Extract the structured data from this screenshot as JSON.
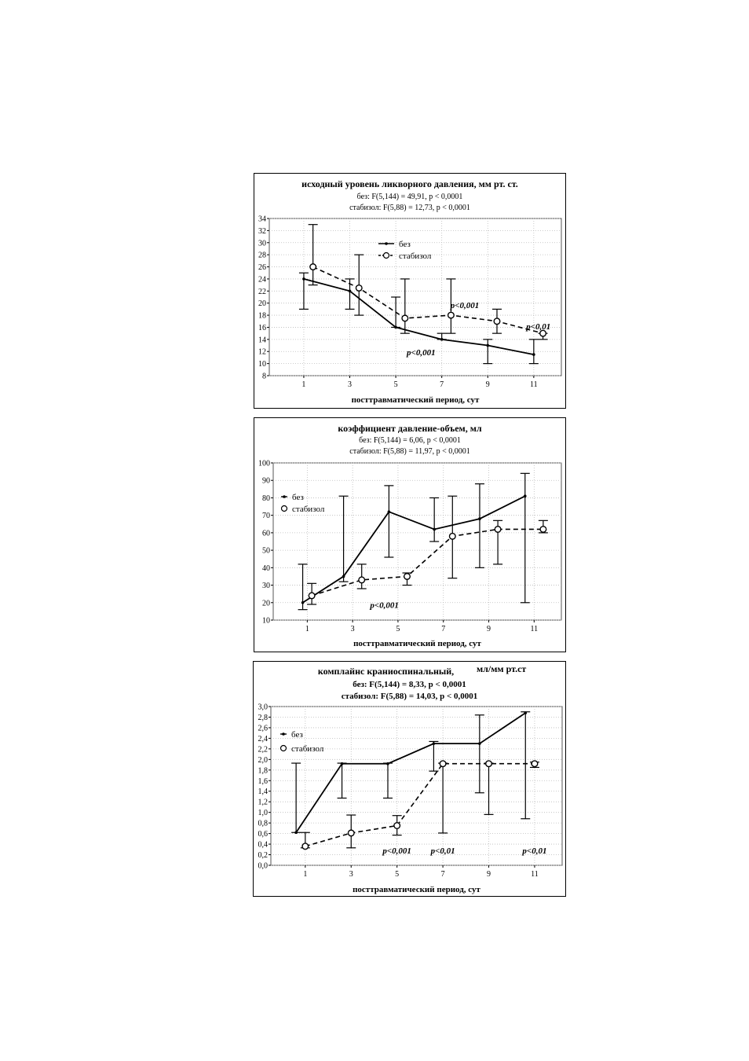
{
  "chart_data": [
    {
      "type": "line",
      "title": "исходный уровень ликворного давления, мм рт. ст.",
      "stats": [
        "без:   F(5,144) = 49,91, p < 0,0001",
        "стабизол:   F(5,88) = 12,73, p < 0,0001"
      ],
      "xlabel": "посттравматический период, сут",
      "ylabel": "",
      "x_ticks": [
        1,
        3,
        5,
        7,
        9,
        11
      ],
      "y_ticks": [
        "8",
        "10",
        "12",
        "14",
        "16",
        "18",
        "20",
        "22",
        "24",
        "26",
        "28",
        "30",
        "32",
        "34"
      ],
      "ylim": [
        8,
        34
      ],
      "xlim": [
        -0.5,
        12.2
      ],
      "grid": true,
      "legend": {
        "position": "top-center",
        "entries": [
          "без",
          "стабизол"
        ]
      },
      "series": [
        {
          "name": "без",
          "style": "solid-dot",
          "x": [
            1,
            3,
            5,
            7,
            9,
            11
          ],
          "y": [
            24,
            22,
            16,
            14,
            13,
            11.5
          ],
          "err_low": [
            19,
            19,
            16,
            14,
            10,
            10
          ],
          "err_high": [
            25,
            24,
            21,
            15,
            14,
            14
          ]
        },
        {
          "name": "стабизол",
          "style": "dashed-circle",
          "x": [
            1.4,
            3.4,
            5.4,
            7.4,
            9.4,
            11.4
          ],
          "y": [
            26,
            22.5,
            17.5,
            18,
            17,
            15
          ],
          "err_low": [
            23,
            18,
            15,
            15,
            15,
            14
          ],
          "err_high": [
            33,
            28,
            24,
            24,
            19,
            15
          ]
        }
      ],
      "annotations": [
        {
          "text": "p<0,001",
          "x": 8,
          "y": 19.2
        },
        {
          "text": "p<0,01",
          "x": 11.2,
          "y": 15.7
        },
        {
          "text": "p<0,001",
          "x": 6.1,
          "y": 11.4
        }
      ]
    },
    {
      "type": "line",
      "title": "коэффициент давление-объем, мл",
      "stats": [
        "без:   F(5,144) = 6,06, p < 0,0001",
        "стабизол:   F(5,88) = 11,97, p < 0,0001"
      ],
      "xlabel": "посттравматический период, сут",
      "ylabel": "",
      "x_ticks": [
        1,
        3,
        5,
        7,
        9,
        11
      ],
      "y_ticks": [
        "10",
        "20",
        "30",
        "40",
        "50",
        "60",
        "70",
        "80",
        "90",
        "100"
      ],
      "ylim": [
        10,
        100
      ],
      "xlim": [
        -0.5,
        12.2
      ],
      "grid": true,
      "legend": {
        "position": "top-left",
        "entries": [
          "без",
          "стабизол"
        ]
      },
      "series": [
        {
          "name": "без",
          "style": "solid-dot",
          "x": [
            0.8,
            2.6,
            4.6,
            6.6,
            8.6,
            10.6
          ],
          "y": [
            20,
            35,
            72,
            62,
            68,
            81
          ],
          "err_low": [
            16,
            32,
            46,
            55,
            40,
            20
          ],
          "err_high": [
            42,
            81,
            87,
            80,
            88,
            94
          ]
        },
        {
          "name": "стабизол",
          "style": "dashed-circle",
          "x": [
            1.2,
            3.4,
            5.4,
            7.4,
            9.4,
            11.4
          ],
          "y": [
            24,
            33,
            35,
            58,
            62,
            62
          ],
          "err_low": [
            19,
            28,
            30,
            34,
            42,
            60
          ],
          "err_high": [
            31,
            42,
            37,
            81,
            67,
            67
          ]
        }
      ],
      "annotations": [
        {
          "text": "p<0,001",
          "x": 4.4,
          "y": 17
        }
      ]
    },
    {
      "type": "line",
      "title": "комплайнс краниоспинальный,",
      "unit_label": "мл/мм рт.ст",
      "stats": [
        "без:   F(5,144) = 8,33, p < 0,0001",
        "стабизол:   F(5,88) = 14,03, p < 0,0001"
      ],
      "xlabel": "посттравматический период, сут",
      "ylabel": "",
      "x_ticks": [
        1,
        3,
        5,
        7,
        9,
        11
      ],
      "y_ticks": [
        "0,0",
        "0,2",
        "0,4",
        "0,6",
        "0,8",
        "1,0",
        "1,2",
        "1,4",
        "1,6",
        "1,8",
        "2,0",
        "2,2",
        "2,4",
        "2,6",
        "2,8",
        "3,0"
      ],
      "ylim": [
        0,
        3
      ],
      "xlim": [
        -0.5,
        12.2
      ],
      "grid": true,
      "legend": {
        "position": "top-left",
        "entries": [
          "без",
          "стабизол"
        ]
      },
      "series": [
        {
          "name": "без",
          "style": "solid-dot",
          "x": [
            0.6,
            2.6,
            4.6,
            6.6,
            8.6,
            10.6
          ],
          "y": [
            0.62,
            1.92,
            1.92,
            2.3,
            2.3,
            2.88
          ],
          "err_low": [
            0.62,
            1.27,
            1.27,
            1.78,
            1.37,
            0.88
          ],
          "err_high": [
            1.93,
            1.93,
            1.93,
            2.34,
            2.84,
            2.9
          ]
        },
        {
          "name": "стабизол",
          "style": "dashed-circle",
          "x": [
            1.0,
            3.0,
            5.0,
            7.0,
            9.0,
            11.0
          ],
          "y": [
            0.36,
            0.61,
            0.75,
            1.92,
            1.92,
            1.92
          ],
          "err_low": [
            0.33,
            0.33,
            0.57,
            0.61,
            0.96,
            1.85
          ],
          "err_high": [
            0.62,
            0.95,
            0.94,
            1.93,
            1.93,
            1.95
          ]
        }
      ],
      "annotations": [
        {
          "text": "p<0,001",
          "x": 5.0,
          "y": 0.22
        },
        {
          "text": "p<0,01",
          "x": 7.0,
          "y": 0.22
        },
        {
          "text": "p<0,01",
          "x": 11.0,
          "y": 0.22
        }
      ]
    }
  ]
}
